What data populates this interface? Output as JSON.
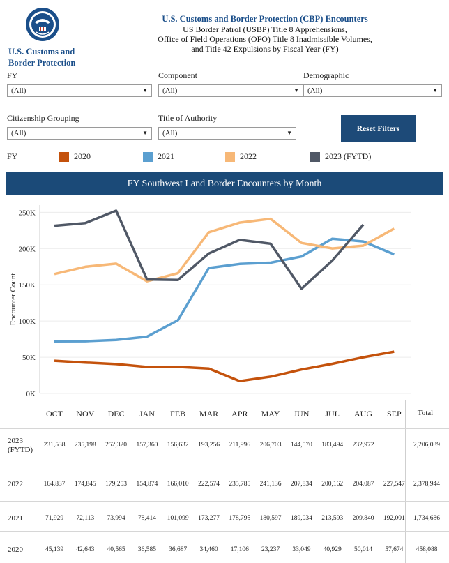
{
  "header": {
    "agency_line1": "U.S. Customs and",
    "agency_line2": "Border Protection",
    "title": "U.S. Customs and Border Protection (CBP) Encounters",
    "subtitle1": "US Border Patrol (USBP) Title 8 Apprehensions,",
    "subtitle2": "Office of Field Operations (OFO) Title 8 Inadmissible Volumes,",
    "subtitle3": "and Title 42 Expulsions by Fiscal Year (FY)"
  },
  "filters": {
    "fy": {
      "label": "FY",
      "value": "(All)"
    },
    "component": {
      "label": "Component",
      "value": "(All)"
    },
    "demographic": {
      "label": "Demographic",
      "value": "(All)"
    },
    "citizenship": {
      "label": "Citizenship Grouping",
      "value": "(All)"
    },
    "authority": {
      "label": "Title of Authority",
      "value": "(All)"
    },
    "reset_label": "Reset Filters"
  },
  "legend": {
    "title": "FY",
    "items": [
      {
        "label": "2020",
        "color": "#c4520c"
      },
      {
        "label": "2021",
        "color": "#5b9fd0"
      },
      {
        "label": "2022",
        "color": "#f7b877"
      },
      {
        "label": "2023 (FYTD)",
        "color": "#505866"
      }
    ]
  },
  "chart_banner": "FY Southwest Land Border Encounters by Month",
  "chart_data": {
    "type": "line",
    "title": "FY Southwest Land Border Encounters by Month",
    "ylabel": "Encounter Count",
    "xlabel": "",
    "categories": [
      "OCT",
      "NOV",
      "DEC",
      "JAN",
      "FEB",
      "MAR",
      "APR",
      "MAY",
      "JUN",
      "JUL",
      "AUG",
      "SEP"
    ],
    "ylim": [
      0,
      260000
    ],
    "yticks": [
      "0K",
      "50K",
      "100K",
      "150K",
      "200K",
      "250K"
    ],
    "grid": true,
    "legend_position": "top",
    "series": [
      {
        "name": "2023 (FYTD)",
        "color": "#505866",
        "values": [
          231538,
          235198,
          252320,
          157360,
          156632,
          193256,
          211996,
          206703,
          144570,
          183494,
          232972,
          null
        ]
      },
      {
        "name": "2022",
        "color": "#f7b877",
        "values": [
          164837,
          174845,
          179253,
          154874,
          166010,
          222574,
          235785,
          241136,
          207834,
          200162,
          204087,
          227547
        ]
      },
      {
        "name": "2021",
        "color": "#5b9fd0",
        "values": [
          71929,
          72113,
          73994,
          78414,
          101099,
          173277,
          178795,
          180597,
          189034,
          213593,
          209840,
          192001
        ]
      },
      {
        "name": "2020",
        "color": "#c4520c",
        "values": [
          45139,
          42643,
          40565,
          36585,
          36687,
          34460,
          17106,
          23237,
          33049,
          40929,
          50014,
          57674
        ]
      }
    ]
  },
  "table": {
    "months": [
      "OCT",
      "NOV",
      "DEC",
      "JAN",
      "FEB",
      "MAR",
      "APR",
      "MAY",
      "JUN",
      "JUL",
      "AUG",
      "SEP"
    ],
    "total_label": "Total",
    "rows": [
      {
        "label1": "2023",
        "label2": "(FYTD)",
        "cells": [
          "231,538",
          "235,198",
          "252,320",
          "157,360",
          "156,632",
          "193,256",
          "211,996",
          "206,703",
          "144,570",
          "183,494",
          "232,972",
          ""
        ],
        "total": "2,206,039"
      },
      {
        "label1": "2022",
        "label2": "",
        "cells": [
          "164,837",
          "174,845",
          "179,253",
          "154,874",
          "166,010",
          "222,574",
          "235,785",
          "241,136",
          "207,834",
          "200,162",
          "204,087",
          "227,547"
        ],
        "total": "2,378,944"
      },
      {
        "label1": "2021",
        "label2": "",
        "cells": [
          "71,929",
          "72,113",
          "73,994",
          "78,414",
          "101,099",
          "173,277",
          "178,795",
          "180,597",
          "189,034",
          "213,593",
          "209,840",
          "192,001"
        ],
        "total": "1,734,686"
      },
      {
        "label1": "2020",
        "label2": "",
        "cells": [
          "45,139",
          "42,643",
          "40,565",
          "36,585",
          "36,687",
          "34,460",
          "17,106",
          "23,237",
          "33,049",
          "40,929",
          "50,014",
          "57,674"
        ],
        "total": "458,088"
      }
    ]
  }
}
